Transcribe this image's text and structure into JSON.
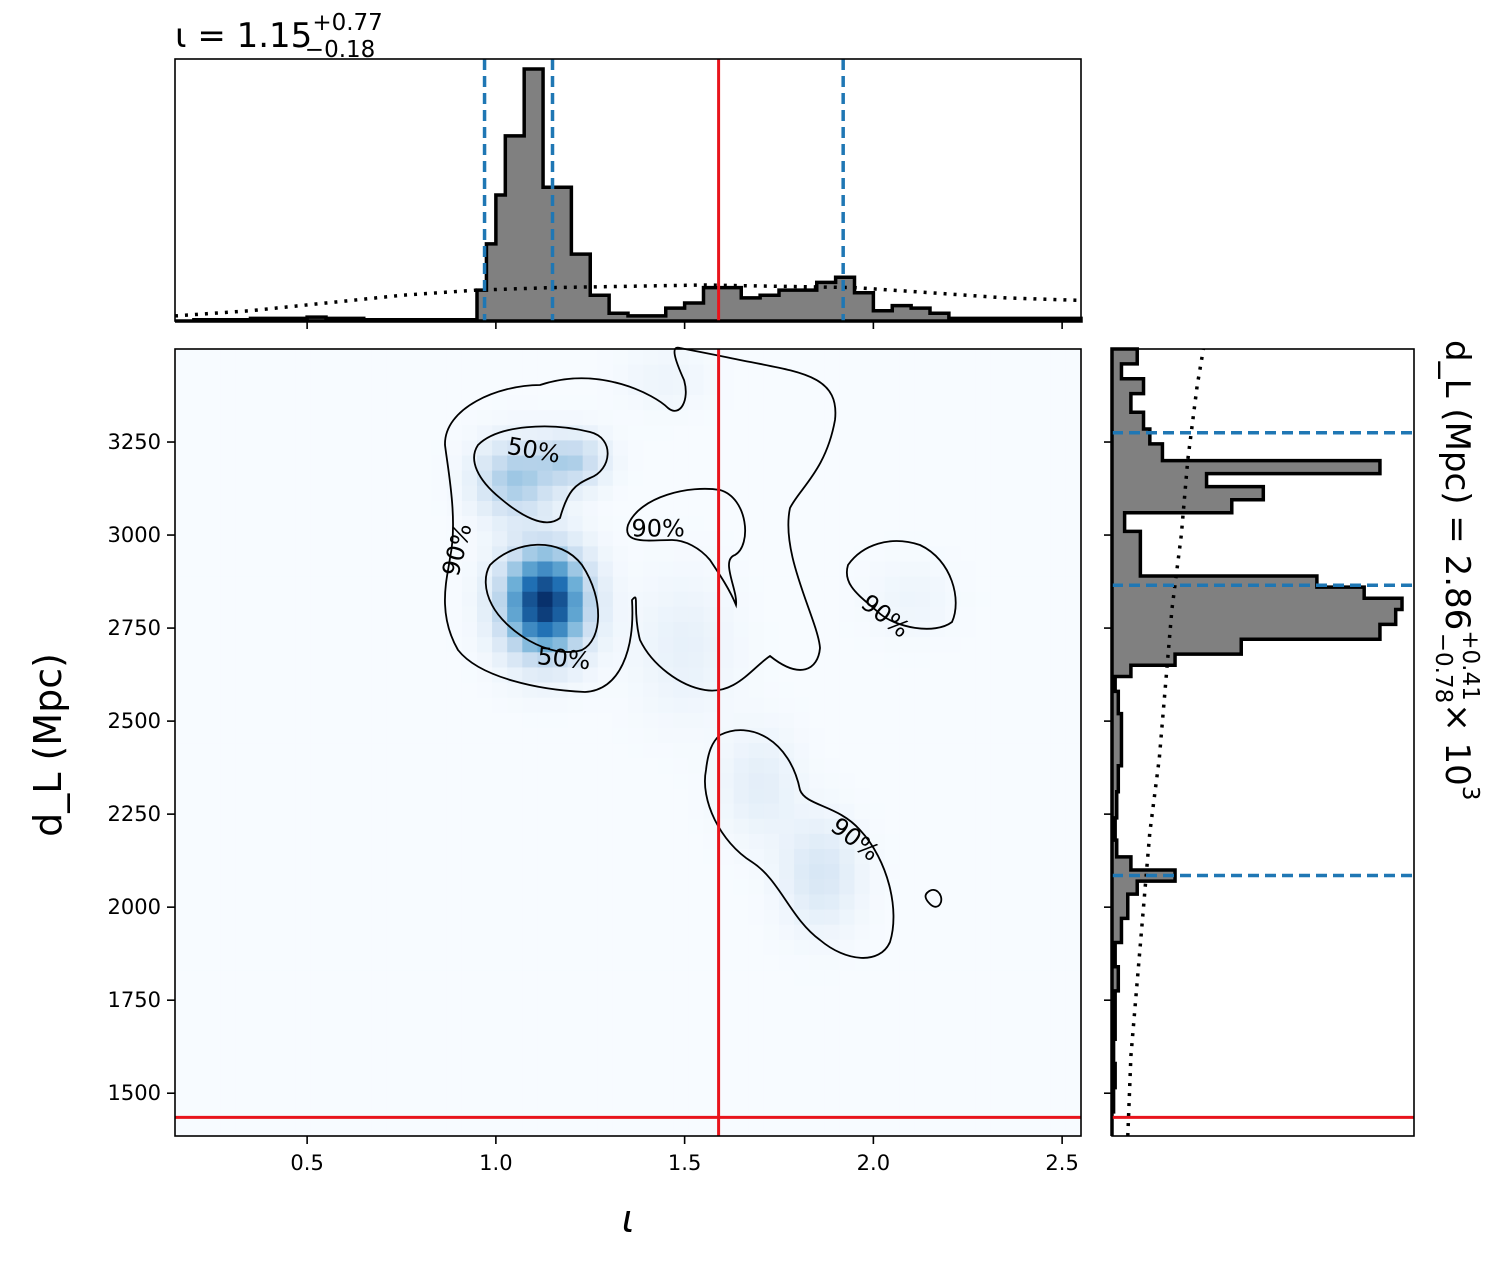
{
  "chart_data": {
    "type": "corner",
    "parameters": [
      "ι",
      "d_L"
    ],
    "colors": {
      "histogram_fill": "#808080",
      "histogram_edge": "#000000",
      "quantile_lines": "#1f77b4",
      "truth_lines": "#e8141c",
      "density_cmap": "Blues"
    },
    "top_panel": {
      "title_main": "ι = 1.15",
      "title_sup": "+0.77",
      "title_sub": "−0.18",
      "xlim": [
        0.15,
        2.55
      ],
      "bins_edges": [
        0.15,
        0.2,
        0.25,
        0.3,
        0.35,
        0.4,
        0.45,
        0.5,
        0.55,
        0.6,
        0.65,
        0.7,
        0.75,
        0.8,
        0.85,
        0.9,
        0.925,
        0.95,
        0.975,
        1.0,
        1.025,
        1.05,
        1.075,
        1.1,
        1.125,
        1.15,
        1.175,
        1.2,
        1.25,
        1.3,
        1.35,
        1.4,
        1.45,
        1.5,
        1.55,
        1.6,
        1.65,
        1.7,
        1.75,
        1.8,
        1.85,
        1.9,
        1.95,
        2.0,
        2.05,
        2.1,
        2.15,
        2.2,
        2.25,
        2.3,
        2.55
      ],
      "bins_counts": [
        0,
        0.005,
        0.005,
        0.005,
        0.01,
        0.01,
        0.01,
        0.015,
        0.01,
        0.01,
        0.005,
        0.005,
        0.005,
        0.005,
        0.005,
        0.005,
        0.005,
        0.12,
        0.3,
        0.49,
        0.72,
        0.72,
        0.98,
        0.98,
        0.52,
        0.52,
        0.52,
        0.26,
        0.1,
        0.03,
        0.02,
        0.02,
        0.05,
        0.07,
        0.13,
        0.13,
        0.09,
        0.1,
        0.12,
        0.12,
        0.15,
        0.17,
        0.11,
        0.04,
        0.06,
        0.05,
        0.03,
        0.01,
        0.01,
        0.01
      ],
      "prior_curve": [
        [
          0.15,
          0.02
        ],
        [
          0.35,
          0.04
        ],
        [
          0.55,
          0.07
        ],
        [
          0.75,
          0.1
        ],
        [
          0.95,
          0.12
        ],
        [
          1.15,
          0.13
        ],
        [
          1.35,
          0.135
        ],
        [
          1.55,
          0.14
        ],
        [
          1.75,
          0.135
        ],
        [
          1.95,
          0.13
        ],
        [
          2.15,
          0.11
        ],
        [
          2.35,
          0.09
        ],
        [
          2.55,
          0.08
        ]
      ],
      "quantiles": [
        0.97,
        1.15,
        1.92
      ],
      "truth": 1.59
    },
    "main_panel": {
      "xlabel": "ι",
      "ylabel": "d_L (Mpc)",
      "xlim": [
        0.15,
        2.55
      ],
      "ylim": [
        1385,
        3500
      ],
      "xticks": [
        0.5,
        1.0,
        1.5,
        2.0,
        2.5
      ],
      "xtick_labels": [
        "0.5",
        "1.0",
        "1.5",
        "2.0",
        "2.5"
      ],
      "yticks": [
        1500,
        1750,
        2000,
        2250,
        2500,
        2750,
        3000,
        3250
      ],
      "ytick_labels": [
        "1500",
        "1750",
        "2000",
        "2250",
        "2500",
        "2750",
        "3000",
        "3250"
      ],
      "truth": {
        "x": 1.59,
        "y": 1435
      },
      "density_blobs": [
        {
          "x": 1.13,
          "y": 2820,
          "sx": 0.075,
          "sy": 95,
          "w": 1.0,
          "rot": -0.6
        },
        {
          "x": 1.05,
          "y": 3150,
          "sx": 0.07,
          "sy": 70,
          "w": 0.35,
          "rot": -0.3
        },
        {
          "x": 1.2,
          "y": 3200,
          "sx": 0.06,
          "sy": 50,
          "w": 0.3,
          "rot": 0
        },
        {
          "x": 1.5,
          "y": 2700,
          "sx": 0.09,
          "sy": 130,
          "w": 0.08,
          "rot": 0
        },
        {
          "x": 1.7,
          "y": 2330,
          "sx": 0.07,
          "sy": 100,
          "w": 0.1,
          "rot": 0
        },
        {
          "x": 1.86,
          "y": 2090,
          "sx": 0.07,
          "sy": 100,
          "w": 0.16,
          "rot": -0.3
        },
        {
          "x": 2.1,
          "y": 2830,
          "sx": 0.08,
          "sy": 70,
          "w": 0.05,
          "rot": 0
        },
        {
          "x": 1.45,
          "y": 3420,
          "sx": 0.08,
          "sy": 60,
          "w": 0.05,
          "rot": 0
        }
      ],
      "contour_labels": [
        {
          "text": "50%",
          "x": 1.1,
          "y": 3225,
          "angle": 10
        },
        {
          "text": "90%",
          "x": 0.9,
          "y": 2960,
          "angle": -75
        },
        {
          "text": "50%",
          "x": 1.18,
          "y": 2665,
          "angle": 6
        },
        {
          "text": "90%",
          "x": 1.43,
          "y": 3015,
          "angle": 0
        },
        {
          "text": "90%",
          "x": 2.03,
          "y": 2780,
          "angle": 38
        },
        {
          "text": "90%",
          "x": 1.95,
          "y": 2180,
          "angle": 38
        }
      ]
    },
    "right_panel": {
      "title_main": "d_L (Mpc) = 2.86",
      "title_sup": "+0.41",
      "title_sub": "−0.78",
      "title_tail": "× 10",
      "title_exp": "3",
      "ylim": [
        1385,
        3500
      ],
      "bins_edges": [
        1385,
        1450,
        1515,
        1580,
        1645,
        1710,
        1775,
        1840,
        1905,
        1970,
        2035,
        2070,
        2100,
        2135,
        2180,
        2240,
        2310,
        2380,
        2450,
        2520,
        2580,
        2620,
        2650,
        2680,
        2720,
        2760,
        2800,
        2830,
        2860,
        2890,
        2920,
        3010,
        3060,
        3095,
        3130,
        3165,
        3200,
        3245,
        3285,
        3330,
        3380,
        3420,
        3460,
        3500
      ],
      "bins_counts": [
        0,
        0.005,
        0.01,
        0.005,
        0.01,
        0.01,
        0.02,
        0.01,
        0.03,
        0.05,
        0.08,
        0.2,
        0.06,
        0.015,
        0.01,
        0.015,
        0.02,
        0.03,
        0.03,
        0.02,
        0.01,
        0.06,
        0.2,
        0.41,
        0.85,
        0.9,
        0.92,
        0.8,
        0.65,
        0.09,
        0.09,
        0.04,
        0.38,
        0.48,
        0.3,
        0.85,
        0.16,
        0.12,
        0.1,
        0.06,
        0.1,
        0.03,
        0.08
      ],
      "prior_curve": [
        [
          1385,
          0.05
        ],
        [
          1600,
          0.06
        ],
        [
          1800,
          0.08
        ],
        [
          2000,
          0.1
        ],
        [
          2200,
          0.12
        ],
        [
          2400,
          0.15
        ],
        [
          2600,
          0.17
        ],
        [
          2800,
          0.19
        ],
        [
          3000,
          0.22
        ],
        [
          3200,
          0.24
        ],
        [
          3400,
          0.27
        ],
        [
          3500,
          0.29
        ]
      ],
      "quantiles": [
        2085,
        2865,
        3275
      ],
      "truth": 1435
    }
  }
}
